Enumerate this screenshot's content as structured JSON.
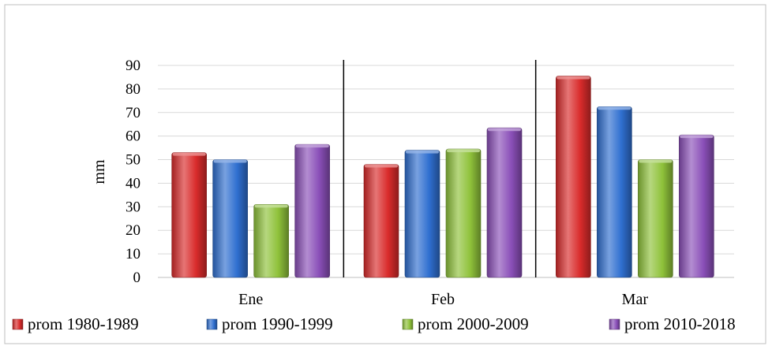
{
  "chart_data": {
    "type": "bar",
    "categories": [
      "Ene",
      "Feb",
      "Mar"
    ],
    "series": [
      {
        "name": "prom 1980-1989",
        "values": [
          53,
          48,
          85.5
        ],
        "color": "#d92b2b"
      },
      {
        "name": "prom 1990-1999",
        "values": [
          50,
          54,
          72.5
        ],
        "color": "#2f6fd0"
      },
      {
        "name": "prom 2000-2009",
        "values": [
          31,
          54.5,
          50
        ],
        "color": "#8fc23a"
      },
      {
        "name": "prom 2010-2018",
        "values": [
          56.5,
          63.5,
          60.5
        ],
        "color": "#8a4fb8"
      }
    ],
    "title": "",
    "xlabel": "",
    "ylabel": "mm",
    "ylim": [
      0,
      90
    ],
    "yticks": [
      0,
      10,
      20,
      30,
      40,
      50,
      60,
      70,
      80,
      90
    ],
    "grid": true,
    "legend_position": "bottom"
  }
}
